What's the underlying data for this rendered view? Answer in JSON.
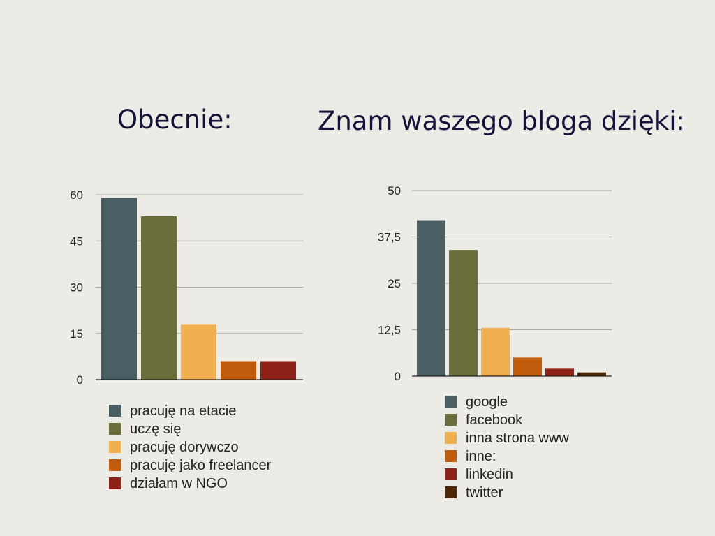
{
  "chart_data": [
    {
      "type": "bar",
      "title": "Obecnie:",
      "categories": [
        "pracuję na etacie",
        "uczę się",
        "pracuję dorywczo",
        "pracuję jako freelancer",
        "działam w NGO"
      ],
      "values": [
        59,
        53,
        18,
        6,
        6
      ],
      "colors": [
        "#4a5f63",
        "#6b6e3a",
        "#f0b050",
        "#c05c0c",
        "#8e2218"
      ],
      "yticks": [
        "0",
        "15",
        "30",
        "45",
        "60"
      ],
      "ylim": [
        0,
        60
      ],
      "grid": true,
      "legend": "bottom"
    },
    {
      "type": "bar",
      "title": "Znam waszego bloga dzięki:",
      "categories": [
        "google",
        "facebook",
        "inna strona www",
        "inne:",
        "linkedin",
        "twitter"
      ],
      "values": [
        42,
        34,
        13,
        5,
        2,
        1
      ],
      "colors": [
        "#4a5f63",
        "#6b6e3a",
        "#f0b050",
        "#c05c0c",
        "#8e2218",
        "#4e2808"
      ],
      "yticks": [
        "0",
        "12,5",
        "25",
        "37,5",
        "50"
      ],
      "ylim": [
        0,
        50
      ],
      "grid": true,
      "legend": "bottom"
    }
  ]
}
